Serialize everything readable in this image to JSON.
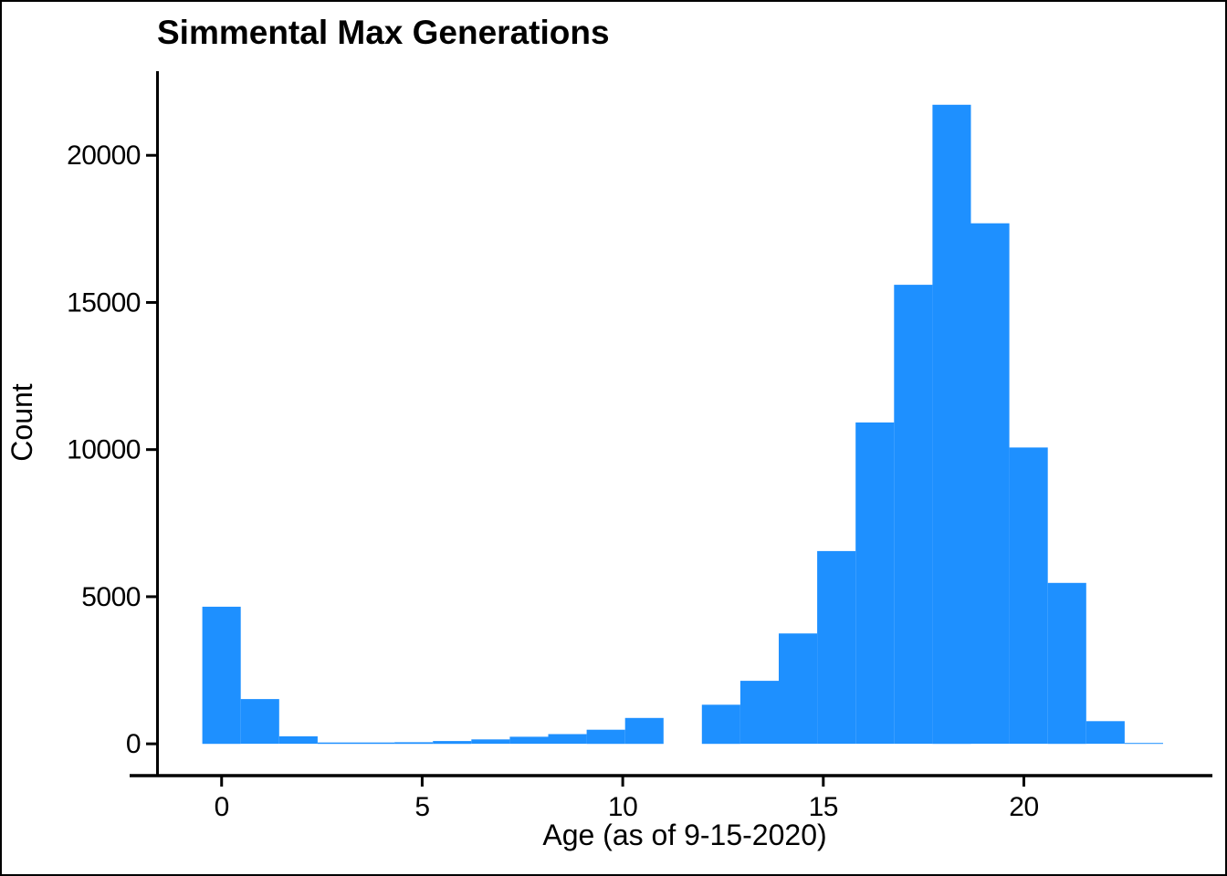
{
  "chart_data": {
    "type": "bar",
    "subtype": "histogram",
    "title": "Simmental Max Generations",
    "xlabel": "Age (as of 9-15-2020)",
    "ylabel": "Count",
    "bar_color": "#1E90FF",
    "axis_color": "#000000",
    "background_color": "#ffffff",
    "grid": false,
    "legend": null,
    "bin_start": -0.48,
    "bin_width": 0.958,
    "bin_centers": [
      0,
      0.96,
      1.92,
      2.87,
      3.83,
      4.79,
      5.75,
      6.71,
      7.66,
      8.62,
      9.58,
      10.54,
      11.5,
      12.45,
      13.41,
      14.37,
      15.33,
      16.29,
      17.24,
      18.2,
      19.16,
      20.12,
      21.08,
      22.03,
      22.99
    ],
    "counts": [
      4660,
      1520,
      255,
      45,
      45,
      55,
      95,
      150,
      240,
      330,
      480,
      880,
      0,
      1330,
      2140,
      3750,
      6550,
      10920,
      15600,
      21720,
      17690,
      10070,
      5470,
      770,
      30
    ],
    "x_ticks": [
      0,
      5,
      10,
      15,
      20
    ],
    "y_ticks": [
      0,
      5000,
      10000,
      15000,
      20000
    ],
    "xlim": [
      -1.61,
      24.7
    ],
    "ylim": [
      -1050,
      22860
    ],
    "peak_count": 21720,
    "peak_age_bin": 18.2
  }
}
